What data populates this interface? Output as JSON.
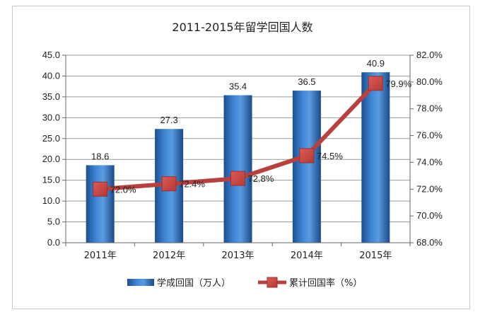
{
  "chart_data": {
    "type": "bar",
    "title": "2011-2015年留学回国人数",
    "categories": [
      "2011年",
      "2012年",
      "2013年",
      "2014年",
      "2015年"
    ],
    "series": [
      {
        "name": "学成回国（万人）",
        "type": "bar",
        "axis": "left",
        "values": [
          18.6,
          27.3,
          35.4,
          36.5,
          40.9
        ],
        "labels": [
          "18.6",
          "27.3",
          "35.4",
          "36.5",
          "40.9"
        ],
        "color": "#2f6db8"
      },
      {
        "name": "累计回国率（%）",
        "type": "line",
        "axis": "right",
        "values": [
          72.0,
          72.4,
          72.8,
          74.5,
          79.9
        ],
        "labels": [
          "72.0%",
          "72.4%",
          "72.8%",
          "74.5%",
          "79.9%"
        ],
        "color": "#c0504d"
      }
    ],
    "y_left": {
      "min": 0,
      "max": 45,
      "ticks": [
        "0.0",
        "5.0",
        "10.0",
        "15.0",
        "20.0",
        "25.0",
        "30.0",
        "35.0",
        "40.0",
        "45.0"
      ]
    },
    "y_right": {
      "min": 68,
      "max": 82,
      "ticks": [
        "68.0%",
        "70.0%",
        "72.0%",
        "74.0%",
        "76.0%",
        "78.0%",
        "80.0%",
        "82.0%"
      ]
    },
    "grid": true,
    "legend": "bottom"
  }
}
